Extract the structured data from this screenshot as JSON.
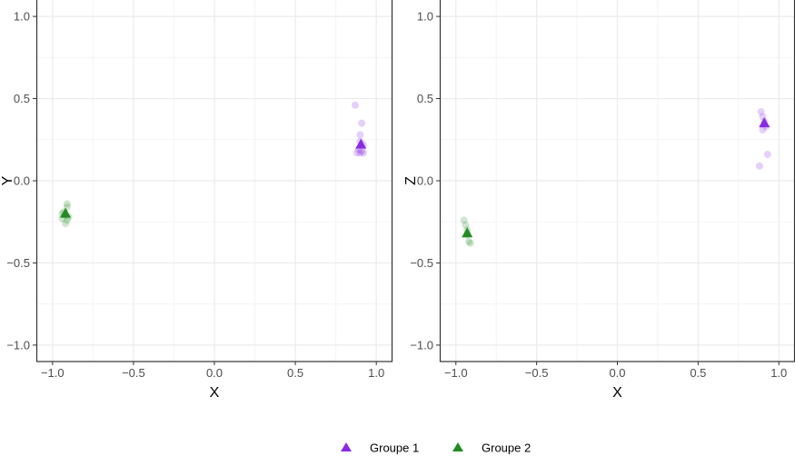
{
  "chart_data": [
    {
      "type": "scatter",
      "xlabel": "X",
      "ylabel": "Y",
      "xlim": [
        -1.1,
        1.1
      ],
      "ylim": [
        -1.1,
        1.1
      ],
      "xticks": [
        "−1.0",
        "−0.5",
        "0.0",
        "0.5",
        "1.0"
      ],
      "yticks": [
        "−1.0",
        "−0.5",
        "0.0",
        "0.5",
        "1.0"
      ],
      "grid": true,
      "series": [
        {
          "name": "Groupe 1",
          "color": "#8a2be2",
          "points": [
            [
              0.87,
              0.46
            ],
            [
              0.91,
              0.35
            ],
            [
              0.9,
              0.28
            ],
            [
              0.9,
              0.24
            ],
            [
              0.92,
              0.22
            ],
            [
              0.89,
              0.19
            ],
            [
              0.92,
              0.17
            ],
            [
              0.9,
              0.17
            ],
            [
              0.91,
              0.18
            ],
            [
              0.88,
              0.17
            ]
          ],
          "centroid": [
            0.905,
            0.22
          ]
        },
        {
          "name": "Groupe 2",
          "color": "#228b22",
          "points": [
            [
              -0.91,
              -0.14
            ],
            [
              -0.91,
              -0.16
            ],
            [
              -0.93,
              -0.19
            ],
            [
              -0.92,
              -0.21
            ],
            [
              -0.94,
              -0.23
            ],
            [
              -0.91,
              -0.24
            ],
            [
              -0.92,
              -0.26
            ],
            [
              -0.94,
              -0.2
            ],
            [
              -0.9,
              -0.22
            ]
          ],
          "centroid": [
            -0.92,
            -0.2
          ]
        }
      ]
    },
    {
      "type": "scatter",
      "xlabel": "X",
      "ylabel": "Z",
      "xlim": [
        -1.1,
        1.1
      ],
      "ylim": [
        -1.1,
        1.1
      ],
      "xticks": [
        "−1.0",
        "−0.5",
        "0.0",
        "0.5",
        "1.0"
      ],
      "yticks": [
        "−1.0",
        "−0.5",
        "0.0",
        "0.5",
        "1.0"
      ],
      "grid": true,
      "series": [
        {
          "name": "Groupe 1",
          "color": "#8a2be2",
          "points": [
            [
              0.89,
              0.42
            ],
            [
              0.9,
              0.39
            ],
            [
              0.91,
              0.36
            ],
            [
              0.92,
              0.33
            ],
            [
              0.9,
              0.31
            ],
            [
              0.93,
              0.16
            ],
            [
              0.88,
              0.09
            ]
          ],
          "centroid": [
            0.91,
            0.35
          ]
        },
        {
          "name": "Groupe 2",
          "color": "#228b22",
          "points": [
            [
              -0.95,
              -0.24
            ],
            [
              -0.94,
              -0.27
            ],
            [
              -0.93,
              -0.3
            ],
            [
              -0.93,
              -0.33
            ],
            [
              -0.92,
              -0.37
            ],
            [
              -0.91,
              -0.38
            ]
          ],
          "centroid": [
            -0.93,
            -0.32
          ]
        }
      ]
    }
  ],
  "legend": {
    "position": "bottom",
    "items": [
      {
        "label": "Groupe 1",
        "color": "#8a2be2"
      },
      {
        "label": "Groupe 2",
        "color": "#228b22"
      }
    ]
  }
}
